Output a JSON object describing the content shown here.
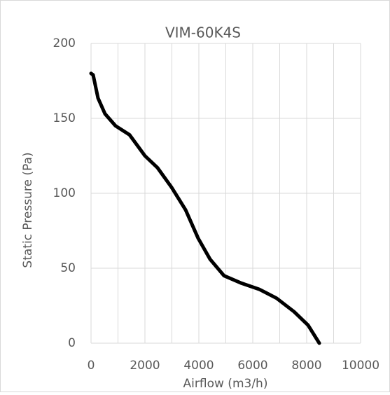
{
  "chart_data": {
    "type": "line",
    "title": "VIM-60K4S",
    "x_label": "Airflow (m3/h)",
    "y_label": "Static Pressure (Pa)",
    "x": [
      0,
      78,
      260,
      520,
      909,
      1429,
      2000,
      2468,
      2987,
      3506,
      3974,
      4416,
      4935,
      5584,
      6234,
      6883,
      7532,
      8052,
      8468
    ],
    "series": [
      {
        "name": "VIM-60K4S",
        "color": "#000000",
        "values": [
          180,
          179,
          163.5,
          153,
          145,
          139,
          125,
          117,
          104,
          89,
          70,
          56,
          45,
          40,
          36,
          30,
          21,
          12,
          0
        ]
      }
    ],
    "xlim": [
      0,
      10000
    ],
    "xticks": [
      0,
      2000,
      4000,
      6000,
      8000,
      10000
    ],
    "x_minor_grid": [
      1000,
      3000,
      5000,
      7000,
      9000
    ],
    "ylim": [
      0,
      200
    ],
    "yticks": [
      0,
      50,
      100,
      150,
      200
    ],
    "grid": true
  }
}
